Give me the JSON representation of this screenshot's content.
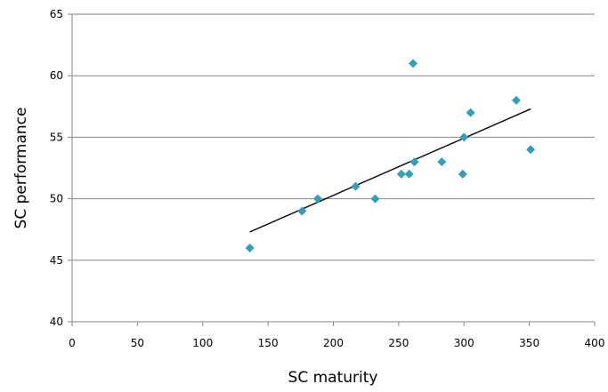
{
  "chart_data": {
    "type": "scatter",
    "title": "",
    "xlabel": "SC maturity",
    "ylabel": "SC performance",
    "xlim": [
      0,
      400
    ],
    "ylim": [
      40,
      65
    ],
    "xticks": [
      "0",
      "50",
      "100",
      "150",
      "200",
      "250",
      "300",
      "350",
      "400"
    ],
    "yticks": [
      "40",
      "45",
      "50",
      "55",
      "60",
      "65"
    ],
    "grid": "horizontal",
    "legend": "none",
    "marker": "diamond",
    "marker_color": "#2e9fbd",
    "points": [
      {
        "x": 136,
        "y": 46
      },
      {
        "x": 176,
        "y": 49
      },
      {
        "x": 188,
        "y": 50
      },
      {
        "x": 217,
        "y": 51
      },
      {
        "x": 232,
        "y": 50
      },
      {
        "x": 252,
        "y": 52
      },
      {
        "x": 258,
        "y": 52
      },
      {
        "x": 261,
        "y": 61
      },
      {
        "x": 262,
        "y": 53
      },
      {
        "x": 283,
        "y": 53
      },
      {
        "x": 299,
        "y": 52
      },
      {
        "x": 300,
        "y": 55
      },
      {
        "x": 305,
        "y": 57
      },
      {
        "x": 340,
        "y": 58
      },
      {
        "x": 351,
        "y": 54
      }
    ],
    "trendline": {
      "type": "linear",
      "color": "#000000",
      "from": {
        "x": 136,
        "y": 47.3
      },
      "to": {
        "x": 351,
        "y": 57.3
      }
    }
  }
}
